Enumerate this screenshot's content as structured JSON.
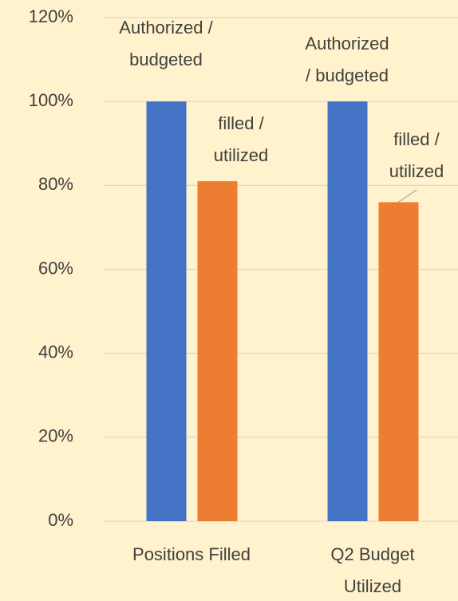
{
  "chart_data": {
    "type": "bar",
    "categories": [
      "Positions Filled",
      "Q2 Budget Utilized"
    ],
    "series": [
      {
        "name": "Authorized / budgeted",
        "color": "#4472c4",
        "values": [
          100,
          100
        ]
      },
      {
        "name": "filled / utilized",
        "color": "#ed7d31",
        "values": [
          81,
          76
        ]
      }
    ],
    "ylim": [
      0,
      120
    ],
    "yticks": [
      {
        "value": 0,
        "label": "0%"
      },
      {
        "value": 20,
        "label": "20%"
      },
      {
        "value": 40,
        "label": "40%"
      },
      {
        "value": 60,
        "label": "60%"
      },
      {
        "value": 80,
        "label": "80%"
      },
      {
        "value": 100,
        "label": "100%"
      },
      {
        "value": 120,
        "label": "120%"
      }
    ],
    "grid": true
  }
}
